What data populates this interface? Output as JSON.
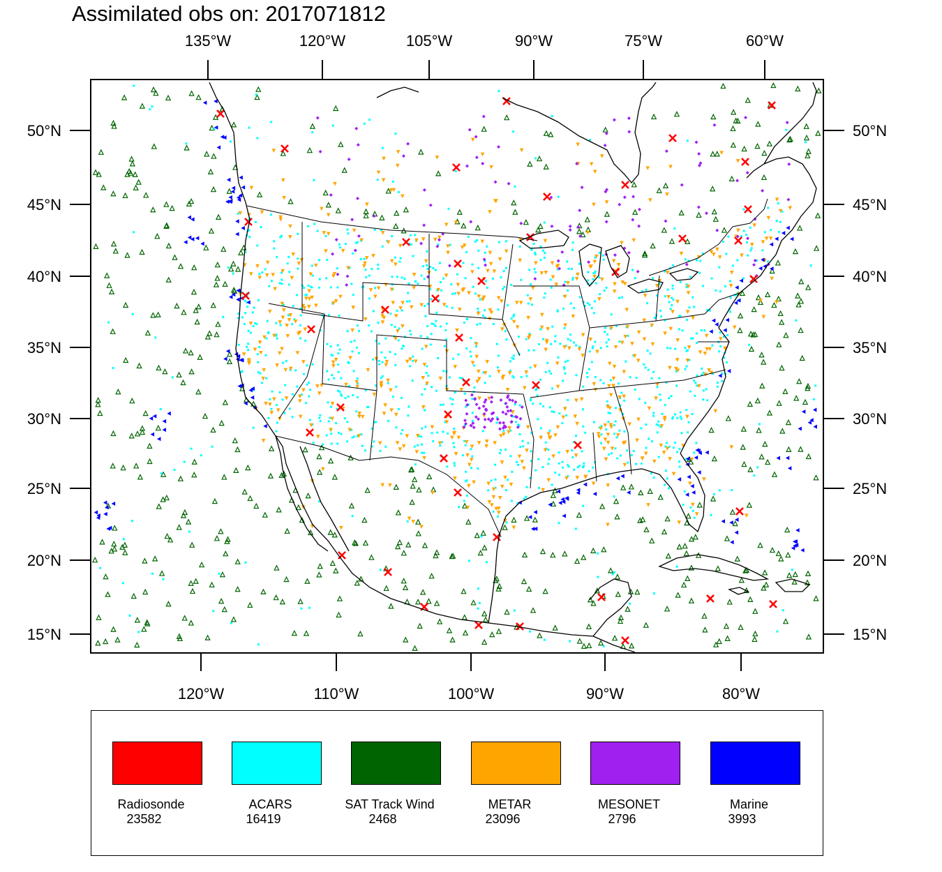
{
  "title": "Assimilated obs on: 2017071812",
  "axes": {
    "top_labels": [
      "135°W",
      "120°W",
      "105°W",
      "90°W",
      "75°W",
      "60°W"
    ],
    "bottom_labels": [
      "120°W",
      "110°W",
      "100°W",
      "90°W",
      "80°W"
    ],
    "left_labels": [
      "50°N",
      "45°N",
      "40°N",
      "35°N",
      "30°N",
      "25°N",
      "20°N",
      "15°N"
    ],
    "right_labels": [
      "50°N",
      "45°N",
      "40°N",
      "35°N",
      "30°N",
      "25°N",
      "20°N",
      "15°N"
    ]
  },
  "legend": [
    {
      "name": "Radiosonde",
      "count": "23582",
      "color": "#ff0000"
    },
    {
      "name": "ACARS",
      "count": "16419",
      "color": "#00ffff"
    },
    {
      "name": "SAT Track Wind",
      "count": "2468",
      "color": "#006400"
    },
    {
      "name": "METAR",
      "count": "23096",
      "color": "#ffa500"
    },
    {
      "name": "MESONET",
      "count": "2796",
      "color": "#a020f0"
    },
    {
      "name": "Marine",
      "count": "3993",
      "color": "#0000ff"
    }
  ]
}
